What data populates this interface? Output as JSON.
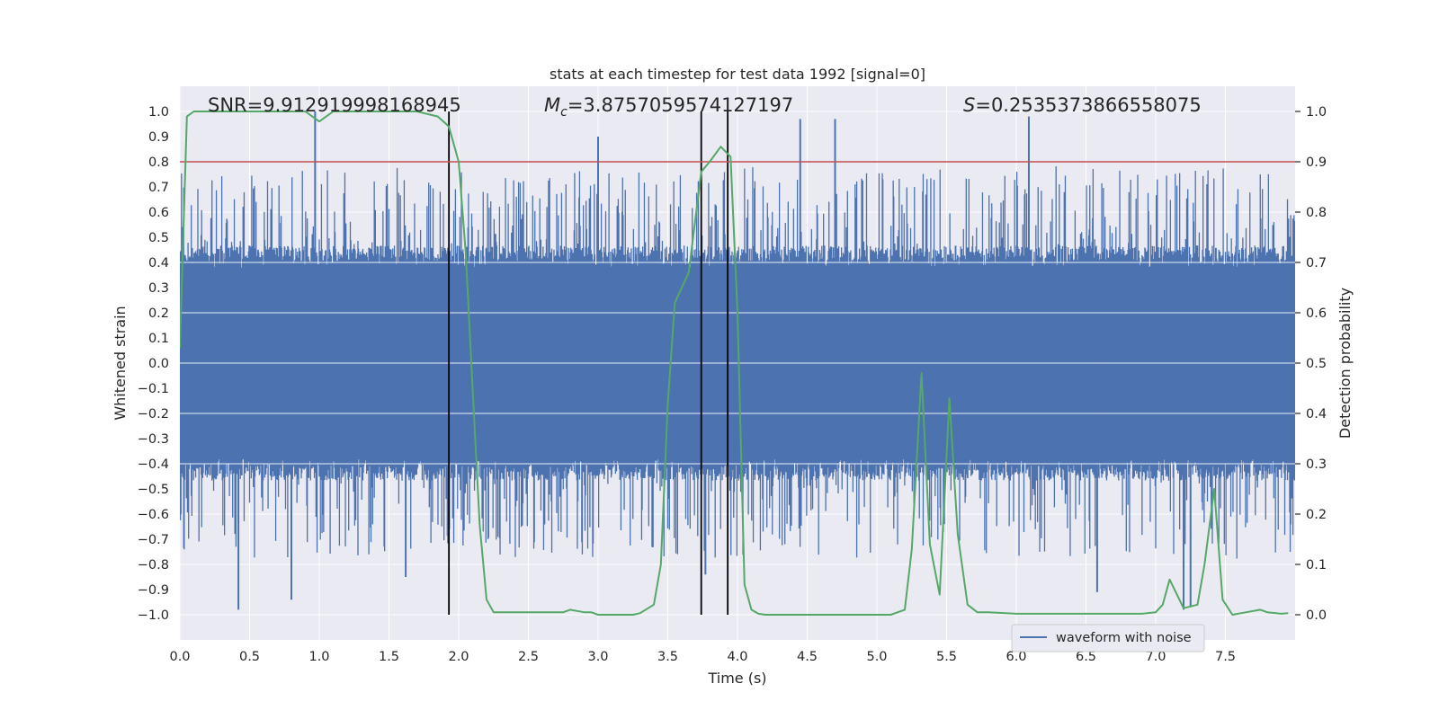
{
  "chart_data": {
    "type": "line",
    "title": "stats at each timestep for test data 1992 [signal=0]",
    "xlabel": "Time (s)",
    "ylabel_left": "Whitened strain",
    "ylabel_right": "Detection probability",
    "xlim": [
      0,
      8
    ],
    "ylim_left": [
      -1.1,
      1.1
    ],
    "ylim_right": [
      -0.05,
      1.05
    ],
    "x_ticks": [
      0.0,
      0.5,
      1.0,
      1.5,
      2.0,
      2.5,
      3.0,
      3.5,
      4.0,
      4.5,
      5.0,
      5.5,
      6.0,
      6.5,
      7.0,
      7.5
    ],
    "x_tick_labels": [
      "0.0",
      "0.5",
      "1.0",
      "1.5",
      "2.0",
      "2.5",
      "3.0",
      "3.5",
      "4.0",
      "4.5",
      "5.0",
      "5.5",
      "6.0",
      "6.5",
      "7.0",
      "7.5"
    ],
    "y_ticks_left": [
      -1.0,
      -0.9,
      -0.8,
      -0.7,
      -0.6,
      -0.5,
      -0.4,
      -0.3,
      -0.2,
      -0.1,
      0.0,
      0.1,
      0.2,
      0.3,
      0.4,
      0.5,
      0.6,
      0.7,
      0.8,
      0.9,
      1.0
    ],
    "y_tick_labels_left": [
      "−1.0",
      "−0.9",
      "−0.8",
      "−0.7",
      "−0.6",
      "−0.5",
      "−0.4",
      "−0.3",
      "−0.2",
      "−0.1",
      "0.0",
      "0.1",
      "0.2",
      "0.3",
      "0.4",
      "0.5",
      "0.6",
      "0.7",
      "0.8",
      "0.9",
      "1.0"
    ],
    "y_ticks_right": [
      0.0,
      0.1,
      0.2,
      0.3,
      0.4,
      0.5,
      0.6,
      0.7,
      0.8,
      0.9,
      1.0
    ],
    "y_tick_labels_right": [
      "0.0",
      "0.1",
      "0.2",
      "0.3",
      "0.4",
      "0.5",
      "0.6",
      "0.7",
      "0.8",
      "0.9",
      "1.0"
    ],
    "threshold": {
      "value": 0.9,
      "axis": "right",
      "color": "#c44e52"
    },
    "vertical_markers": {
      "x": [
        1.93,
        3.74,
        3.93
      ],
      "y_range": [
        -1.0,
        1.0
      ],
      "color": "#000000"
    },
    "annotations": {
      "snr": "SNR=9.912919998168945",
      "mc_symbol": "M",
      "mc_subscript": "c",
      "mc_value": "=3.8757059574127197",
      "s_symbol": "S",
      "s_value": "=0.2535373866558075"
    },
    "series": [
      {
        "name": "waveform with noise",
        "axis": "left",
        "color": "#4c72b0",
        "kind": "dense-noise",
        "n_samples": 2048,
        "core_amplitude": 0.42,
        "peak_values": [
          {
            "x": 0.42,
            "y": -0.98
          },
          {
            "x": 0.8,
            "y": -0.94
          },
          {
            "x": 0.97,
            "y": 1.0
          },
          {
            "x": 1.62,
            "y": -0.85
          },
          {
            "x": 3.0,
            "y": 0.9
          },
          {
            "x": 3.77,
            "y": -0.84
          },
          {
            "x": 4.45,
            "y": 0.97
          },
          {
            "x": 4.7,
            "y": 0.97
          },
          {
            "x": 6.09,
            "y": 0.98
          },
          {
            "x": 6.58,
            "y": -0.91
          },
          {
            "x": 7.2,
            "y": -0.98
          },
          {
            "x": 7.25,
            "y": -0.97
          }
        ]
      },
      {
        "name": "detection probability",
        "axis": "right",
        "color": "#55a868",
        "x": [
          0.0,
          0.05,
          0.1,
          0.2,
          0.3,
          0.5,
          0.7,
          0.9,
          1.0,
          1.1,
          1.3,
          1.5,
          1.7,
          1.85,
          1.93,
          2.0,
          2.05,
          2.1,
          2.15,
          2.2,
          2.25,
          2.3,
          2.4,
          2.6,
          2.75,
          2.8,
          2.9,
          2.95,
          3.0,
          3.1,
          3.25,
          3.3,
          3.4,
          3.45,
          3.5,
          3.55,
          3.65,
          3.74,
          3.8,
          3.88,
          3.95,
          4.0,
          4.05,
          4.1,
          4.15,
          4.2,
          4.4,
          4.6,
          4.8,
          5.0,
          5.1,
          5.2,
          5.25,
          5.32,
          5.38,
          5.45,
          5.52,
          5.58,
          5.65,
          5.72,
          5.8,
          6.0,
          6.3,
          6.6,
          6.9,
          7.0,
          7.05,
          7.1,
          7.2,
          7.3,
          7.35,
          7.42,
          7.48,
          7.55,
          7.65,
          7.75,
          7.8,
          7.9,
          7.95
        ],
        "y": [
          0.53,
          0.99,
          1.0,
          1.0,
          1.0,
          1.0,
          1.0,
          1.0,
          0.98,
          1.0,
          1.0,
          1.0,
          1.0,
          0.99,
          0.97,
          0.9,
          0.72,
          0.45,
          0.18,
          0.03,
          0.005,
          0.005,
          0.005,
          0.005,
          0.005,
          0.01,
          0.005,
          0.005,
          0.0,
          0.0,
          0.0,
          0.003,
          0.02,
          0.1,
          0.42,
          0.62,
          0.68,
          0.88,
          0.9,
          0.93,
          0.91,
          0.6,
          0.06,
          0.01,
          0.002,
          0.0,
          0.0,
          0.0,
          0.0,
          0.0,
          0.0,
          0.01,
          0.13,
          0.48,
          0.14,
          0.04,
          0.43,
          0.16,
          0.02,
          0.005,
          0.005,
          0.002,
          0.002,
          0.002,
          0.002,
          0.005,
          0.02,
          0.07,
          0.013,
          0.02,
          0.1,
          0.25,
          0.03,
          0.0,
          0.005,
          0.01,
          0.005,
          0.002,
          0.003
        ]
      }
    ],
    "legend": {
      "location": "lower-center-right",
      "entries": [
        "waveform with noise"
      ]
    }
  },
  "colors": {
    "plot_bg": "#eaeaf2",
    "grid": "#ffffff"
  }
}
